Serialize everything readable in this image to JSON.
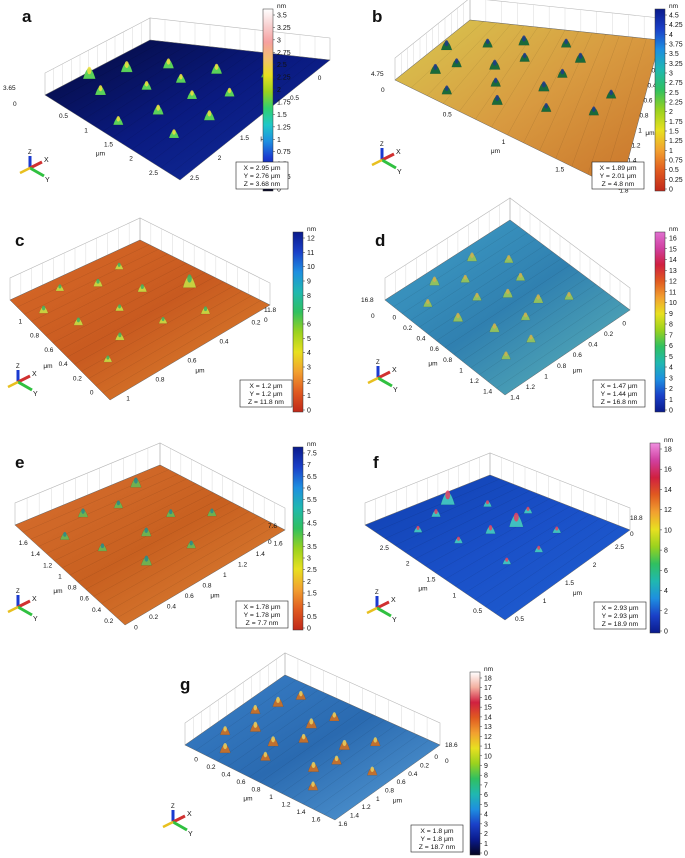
{
  "figure": {
    "panels": [
      {
        "letter": "a",
        "colorbar": {
          "unit": "nm",
          "ticks": [
            "0",
            "0.25",
            "0.5",
            "0.75",
            "1",
            "1.25",
            "1.5",
            "1.75",
            "2",
            "2.25",
            "2.5",
            "2.75",
            "3",
            "3.25",
            "3.5"
          ],
          "colors": [
            "#050520",
            "#0b1a8c",
            "#1a3ad0",
            "#1e8fe0",
            "#20c8c8",
            "#30d070",
            "#9ad21e",
            "#e8e020",
            "#f4c070",
            "#f6a0a0",
            "#f8d0d0",
            "#ffffff"
          ]
        },
        "surface": {
          "colors": [
            "#050a3a",
            "#0a1a80",
            "#1230a0"
          ],
          "peak": "#5ad25a",
          "tip": "#f0e040",
          "peaks": [
            [
              0.1,
              0.45,
              0.5
            ],
            [
              0.25,
              0.2,
              0.6
            ],
            [
              0.35,
              0.05,
              0.8
            ],
            [
              0.45,
              0.35,
              0.5
            ],
            [
              0.55,
              0.15,
              0.7
            ],
            [
              0.6,
              0.45,
              0.5
            ],
            [
              0.7,
              0.3,
              0.6
            ],
            [
              0.3,
              0.55,
              0.6
            ],
            [
              0.5,
              0.6,
              0.5
            ],
            [
              0.75,
              0.55,
              0.6
            ],
            [
              0.4,
              0.8,
              0.6
            ],
            [
              0.6,
              0.75,
              0.5
            ],
            [
              0.8,
              0.8,
              0.4
            ],
            [
              0.2,
              0.75,
              0.5
            ]
          ]
        },
        "z_axis_label": "3.65",
        "x_ticks": [
          "0.5",
          "1",
          "1.5",
          "2",
          "2.5"
        ],
        "y_ticks": [
          "2.5",
          "2",
          "1.5",
          "1",
          "0.5",
          "0"
        ],
        "axis_unit": "μm",
        "info": [
          "X = 2.95 μm",
          "Y = 2.76 μm",
          "Z = 3.68 nm"
        ]
      },
      {
        "letter": "b",
        "colorbar": {
          "unit": "nm",
          "ticks": [
            "0",
            "0.25",
            "0.5",
            "0.75",
            "1",
            "1.25",
            "1.5",
            "1.75",
            "2",
            "2.25",
            "2.5",
            "2.75",
            "3",
            "3.25",
            "3.5",
            "3.75",
            "4",
            "4.25",
            "4.5"
          ],
          "colors": [
            "#c0281a",
            "#e05a20",
            "#f2a030",
            "#e8e020",
            "#9ad21e",
            "#30c060",
            "#20b8b0",
            "#1e8fe0",
            "#1a40c8",
            "#0a1a8c"
          ]
        },
        "surface": {
          "colors": [
            "#d8c850",
            "#d89a40",
            "#c87028"
          ],
          "peak": "#1a6a3a",
          "tip": "#203a8a",
          "peaks": [
            [
              0.1,
              0.2,
              0.5
            ],
            [
              0.25,
              0.1,
              0.6
            ],
            [
              0.4,
              0.15,
              0.5
            ],
            [
              0.55,
              0.05,
              0.6
            ],
            [
              0.7,
              0.2,
              0.5
            ],
            [
              0.2,
              0.4,
              0.6
            ],
            [
              0.35,
              0.35,
              0.5
            ],
            [
              0.5,
              0.3,
              0.6
            ],
            [
              0.65,
              0.4,
              0.5
            ],
            [
              0.8,
              0.35,
              0.6
            ],
            [
              0.3,
              0.6,
              0.5
            ],
            [
              0.45,
              0.55,
              0.6
            ],
            [
              0.6,
              0.6,
              0.5
            ],
            [
              0.75,
              0.65,
              0.6
            ],
            [
              0.4,
              0.8,
              0.5
            ],
            [
              0.55,
              0.85,
              0.5
            ],
            [
              0.85,
              0.55,
              0.5
            ]
          ]
        },
        "z_axis_label": "4.75",
        "x_ticks": [
          "0.5",
          "1",
          "1.5"
        ],
        "y_ticks": [
          "1.8",
          "1.6",
          "1.4",
          "1.2",
          "1",
          "0.8",
          "0.6",
          "0.4",
          "0.2",
          "0"
        ],
        "axis_unit": "μm",
        "info": [
          "X = 1.89 μm",
          "Y = 2.01 μm",
          "Z = 4.8 nm"
        ]
      },
      {
        "letter": "c",
        "colorbar": {
          "unit": "nm",
          "ticks": [
            "0",
            "1",
            "2",
            "3",
            "4",
            "5",
            "6",
            "7",
            "8",
            "9",
            "10",
            "11",
            "12"
          ],
          "colors": [
            "#c0281a",
            "#e05a20",
            "#f2a030",
            "#e8e020",
            "#9ad21e",
            "#30c060",
            "#20b8b0",
            "#1e8fe0",
            "#1a40c8",
            "#0a1a8c"
          ]
        },
        "surface": {
          "colors": [
            "#d86a28",
            "#c85a20",
            "#e08a30"
          ],
          "peak": "#c8d040",
          "tip": "#40b060",
          "peaks": [
            [
              0.1,
              0.2,
              0.4
            ],
            [
              0.3,
              0.1,
              0.3
            ],
            [
              0.5,
              0.2,
              0.4
            ],
            [
              0.7,
              0.15,
              0.3
            ],
            [
              0.2,
              0.4,
              0.4
            ],
            [
              0.45,
              0.45,
              0.3
            ],
            [
              0.65,
              0.4,
              0.4
            ],
            [
              0.3,
              0.65,
              0.4
            ],
            [
              0.55,
              0.7,
              0.3
            ],
            [
              0.85,
              0.55,
              0.9
            ],
            [
              0.75,
              0.8,
              0.4
            ],
            [
              0.15,
              0.75,
              0.3
            ]
          ]
        },
        "z_axis_label": "11.8",
        "x_ticks": [
          "1",
          "0.8",
          "0.6",
          "0.4",
          "0.2",
          "0"
        ],
        "y_ticks": [
          "1",
          "0.8",
          "0.6",
          "0.4",
          "0.2"
        ],
        "axis_unit": "μm",
        "info": [
          "X = 1.2 μm",
          "Y = 1.2 μm",
          "Z = 11.8 nm"
        ]
      },
      {
        "letter": "d",
        "colorbar": {
          "unit": "nm",
          "ticks": [
            "0",
            "1",
            "2",
            "3",
            "4",
            "5",
            "6",
            "7",
            "8",
            "9",
            "10",
            "11",
            "12",
            "13",
            "14",
            "15",
            "16"
          ],
          "colors": [
            "#0a1a8c",
            "#1a40c8",
            "#1e8fe0",
            "#20b8b0",
            "#30c060",
            "#9ad21e",
            "#e8e020",
            "#f2a030",
            "#e05a20",
            "#d02040",
            "#d040a0",
            "#e070d0"
          ]
        },
        "surface": {
          "colors": [
            "#40a0c8",
            "#3080b0",
            "#60b8b8"
          ],
          "peak": "#90c060",
          "tip": "#d0b050",
          "peaks": [
            [
              0.15,
              0.2,
              0.4
            ],
            [
              0.3,
              0.1,
              0.5
            ],
            [
              0.45,
              0.2,
              0.4
            ],
            [
              0.6,
              0.1,
              0.5
            ],
            [
              0.75,
              0.25,
              0.4
            ],
            [
              0.2,
              0.4,
              0.5
            ],
            [
              0.4,
              0.35,
              0.4
            ],
            [
              0.55,
              0.45,
              0.5
            ],
            [
              0.7,
              0.4,
              0.4
            ],
            [
              0.3,
              0.6,
              0.5
            ],
            [
              0.5,
              0.65,
              0.4
            ],
            [
              0.65,
              0.6,
              0.5
            ],
            [
              0.8,
              0.7,
              0.4
            ],
            [
              0.4,
              0.8,
              0.4
            ],
            [
              0.2,
              0.8,
              0.4
            ]
          ]
        },
        "z_axis_label": "16.8",
        "x_ticks": [
          "0",
          "0.2",
          "0.4",
          "0.6",
          "0.8",
          "1",
          "1.2",
          "1.4"
        ],
        "y_ticks": [
          "1.4",
          "1.2",
          "1",
          "0.8",
          "0.6",
          "0.4",
          "0.2",
          "0"
        ],
        "axis_unit": "μm",
        "info": [
          "X = 1.47 μm",
          "Y = 1.44 μm",
          "Z = 16.8 nm"
        ]
      },
      {
        "letter": "e",
        "colorbar": {
          "unit": "nm",
          "ticks": [
            "0",
            "0.5",
            "1",
            "1.5",
            "2",
            "2.5",
            "3",
            "3.5",
            "4",
            "4.5",
            "5",
            "5.5",
            "6",
            "6.5",
            "7",
            "7.5"
          ],
          "colors": [
            "#c0281a",
            "#e05a20",
            "#f2a030",
            "#e8e020",
            "#9ad21e",
            "#30c060",
            "#20b8b0",
            "#1e8fe0",
            "#1a40c8",
            "#0a1a8c"
          ]
        },
        "surface": {
          "colors": [
            "#d87030",
            "#c86020",
            "#e08838"
          ],
          "peak": "#70b050",
          "tip": "#2a8a8a",
          "peaks": [
            [
              0.15,
              0.25,
              0.4
            ],
            [
              0.35,
              0.15,
              0.5
            ],
            [
              0.55,
              0.2,
              0.4
            ],
            [
              0.75,
              0.1,
              0.6
            ],
            [
              0.25,
              0.45,
              0.4
            ],
            [
              0.5,
              0.5,
              0.5
            ],
            [
              0.7,
              0.45,
              0.4
            ],
            [
              0.35,
              0.7,
              0.6
            ],
            [
              0.6,
              0.75,
              0.4
            ],
            [
              0.85,
              0.6,
              0.4
            ]
          ]
        },
        "z_axis_label": "7.6",
        "x_ticks": [
          "1.6",
          "1.4",
          "1.2",
          "1",
          "0.8",
          "0.6",
          "0.4",
          "0.2"
        ],
        "y_ticks": [
          "0",
          "0.2",
          "0.4",
          "0.6",
          "0.8",
          "1",
          "1.2",
          "1.4",
          "1.6"
        ],
        "axis_unit": "μm",
        "info": [
          "X = 1.78 μm",
          "Y = 1.78 μm",
          "Z = 7.7 nm"
        ]
      },
      {
        "letter": "f",
        "colorbar": {
          "unit": "nm",
          "ticks": [
            "0",
            "2",
            "4",
            "6",
            "8",
            "10",
            "12",
            "14",
            "16",
            "18"
          ],
          "colors": [
            "#0a1a8c",
            "#1a40c8",
            "#1e8fe0",
            "#20b8b0",
            "#30c060",
            "#9ad21e",
            "#e8e020",
            "#f2a030",
            "#e05a20",
            "#d02040",
            "#d040a0",
            "#f090e0"
          ]
        },
        "surface": {
          "colors": [
            "#1040b0",
            "#1a50c8",
            "#2060d0"
          ],
          "peak": "#40c0c0",
          "tip": "#e84060",
          "peaks": [
            [
              0.2,
              0.2,
              0.3
            ],
            [
              0.4,
              0.15,
              0.4
            ],
            [
              0.55,
              0.1,
              1.0
            ],
            [
              0.7,
              0.25,
              0.3
            ],
            [
              0.3,
              0.4,
              0.3
            ],
            [
              0.5,
              0.45,
              0.5
            ],
            [
              0.65,
              0.5,
              1.0
            ],
            [
              0.8,
              0.45,
              0.3
            ],
            [
              0.35,
              0.7,
              0.3
            ],
            [
              0.55,
              0.75,
              0.3
            ],
            [
              0.75,
              0.7,
              0.3
            ]
          ]
        },
        "z_axis_label": "18.8",
        "x_ticks": [
          "2.5",
          "2",
          "1.5",
          "1",
          "0.5"
        ],
        "y_ticks": [
          "0.5",
          "1",
          "1.5",
          "2",
          "2.5"
        ],
        "axis_unit": "μm",
        "info": [
          "X = 2.93 μm",
          "Y = 2.93 μm",
          "Z = 18.9 nm"
        ]
      },
      {
        "letter": "g",
        "colorbar": {
          "unit": "nm",
          "ticks": [
            "0",
            "1",
            "2",
            "3",
            "4",
            "5",
            "6",
            "7",
            "8",
            "9",
            "10",
            "11",
            "12",
            "13",
            "14",
            "15",
            "16",
            "17",
            "18"
          ],
          "colors": [
            "#050520",
            "#0a1a8c",
            "#1a40c8",
            "#1e8fe0",
            "#20b8b0",
            "#30c060",
            "#9ad21e",
            "#e8e020",
            "#f2a030",
            "#e05a20",
            "#d02040",
            "#f4b0a0",
            "#ffffff"
          ]
        },
        "surface": {
          "colors": [
            "#3a80c8",
            "#2a6ab0",
            "#5aa0d8"
          ],
          "peak": "#c07030",
          "tip": "#e8d060",
          "peaks": [
            [
              0.1,
              0.2,
              0.6
            ],
            [
              0.25,
              0.1,
              0.5
            ],
            [
              0.4,
              0.2,
              0.6
            ],
            [
              0.55,
              0.1,
              0.5
            ],
            [
              0.7,
              0.15,
              0.6
            ],
            [
              0.85,
              0.2,
              0.5
            ],
            [
              0.2,
              0.4,
              0.5
            ],
            [
              0.35,
              0.35,
              0.6
            ],
            [
              0.5,
              0.45,
              0.5
            ],
            [
              0.65,
              0.4,
              0.6
            ],
            [
              0.8,
              0.45,
              0.5
            ],
            [
              0.3,
              0.65,
              0.6
            ],
            [
              0.45,
              0.7,
              0.5
            ],
            [
              0.6,
              0.65,
              0.6
            ],
            [
              0.75,
              0.75,
              0.5
            ],
            [
              0.15,
              0.75,
              0.5
            ],
            [
              0.5,
              0.9,
              0.5
            ]
          ]
        },
        "z_axis_label": "18.6",
        "x_ticks": [
          "0",
          "0.2",
          "0.4",
          "0.6",
          "0.8",
          "1",
          "1.2",
          "1.4",
          "1.6"
        ],
        "y_ticks": [
          "1.6",
          "1.4",
          "1.2",
          "1",
          "0.8",
          "0.6",
          "0.4",
          "0.2",
          "0"
        ],
        "axis_unit": "μm",
        "info": [
          "X = 1.8 μm",
          "Y = 1.8 μm",
          "Z = 18.7 nm"
        ]
      }
    ]
  }
}
